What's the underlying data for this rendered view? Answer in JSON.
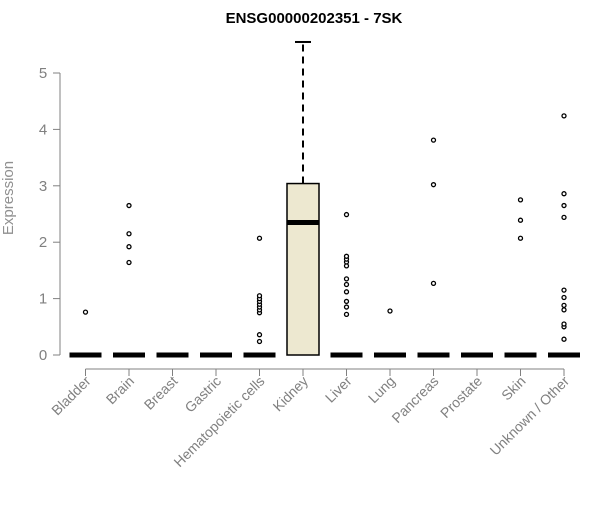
{
  "chart_data": {
    "type": "boxplot",
    "title": "ENSG00000202351 - 7SK",
    "xlabel": "",
    "ylabel": "Expression",
    "ylim": [
      0,
      5.5
    ],
    "yticks": [
      0,
      1,
      2,
      3,
      4,
      5
    ],
    "grid": false,
    "legend": "none",
    "colors": {
      "box_fill": "#ede8d0",
      "axis": "#808080",
      "mark": "#000000"
    },
    "categories": [
      "Bladder",
      "Brain",
      "Breast",
      "Gastric",
      "Hematopoietic cells",
      "Kidney",
      "Liver",
      "Lung",
      "Pancreas",
      "Prostate",
      "Skin",
      "Unknown / Other"
    ],
    "boxes": [
      {
        "category": "Bladder",
        "median": 0,
        "q1": 0,
        "q3": 0,
        "whisker_low": 0,
        "whisker_high": 0,
        "outliers": [
          0.76
        ]
      },
      {
        "category": "Brain",
        "median": 0,
        "q1": 0,
        "q3": 0,
        "whisker_low": 0,
        "whisker_high": 0,
        "outliers": [
          1.64,
          1.92,
          2.15,
          2.65
        ]
      },
      {
        "category": "Breast",
        "median": 0,
        "q1": 0,
        "q3": 0,
        "whisker_low": 0,
        "whisker_high": 0,
        "outliers": []
      },
      {
        "category": "Gastric",
        "median": 0,
        "q1": 0,
        "q3": 0,
        "whisker_low": 0,
        "whisker_high": 0,
        "outliers": []
      },
      {
        "category": "Hematopoietic cells",
        "median": 0,
        "q1": 0,
        "q3": 0,
        "whisker_low": 0,
        "whisker_high": 0,
        "outliers": [
          0.24,
          0.36,
          0.75,
          0.8,
          0.85,
          0.9,
          0.95,
          1.0,
          1.05,
          2.07
        ]
      },
      {
        "category": "Kidney",
        "median": 2.35,
        "q1": 0,
        "q3": 3.04,
        "whisker_low": 0,
        "whisker_high": 5.55,
        "outliers": []
      },
      {
        "category": "Liver",
        "median": 0,
        "q1": 0,
        "q3": 0,
        "whisker_low": 0,
        "whisker_high": 0,
        "outliers": [
          0.72,
          0.85,
          0.95,
          1.12,
          1.25,
          1.35,
          1.58,
          1.65,
          1.7,
          1.75,
          2.49
        ]
      },
      {
        "category": "Lung",
        "median": 0,
        "q1": 0,
        "q3": 0,
        "whisker_low": 0,
        "whisker_high": 0,
        "outliers": [
          0.78
        ]
      },
      {
        "category": "Pancreas",
        "median": 0,
        "q1": 0,
        "q3": 0,
        "whisker_low": 0,
        "whisker_high": 0,
        "outliers": [
          1.27,
          3.02,
          3.81
        ]
      },
      {
        "category": "Prostate",
        "median": 0,
        "q1": 0,
        "q3": 0,
        "whisker_low": 0,
        "whisker_high": 0,
        "outliers": []
      },
      {
        "category": "Skin",
        "median": 0,
        "q1": 0,
        "q3": 0,
        "whisker_low": 0,
        "whisker_high": 0,
        "outliers": [
          2.07,
          2.39,
          2.75
        ]
      },
      {
        "category": "Unknown / Other",
        "median": 0,
        "q1": 0,
        "q3": 0,
        "whisker_low": 0,
        "whisker_high": 0,
        "outliers": [
          0.28,
          0.5,
          0.55,
          0.8,
          0.88,
          1.02,
          1.15,
          2.44,
          2.65,
          2.86,
          4.24
        ]
      }
    ]
  }
}
